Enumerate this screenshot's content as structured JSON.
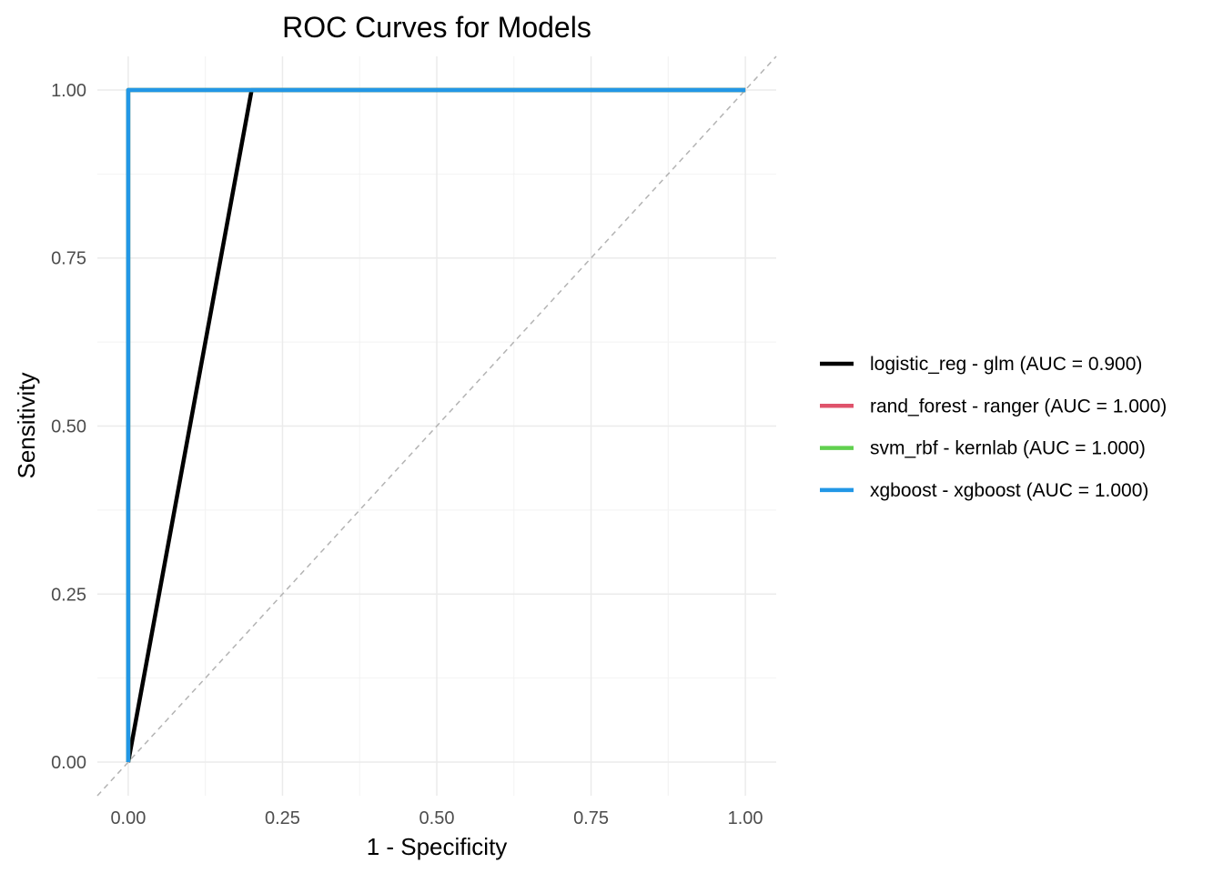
{
  "chart_data": {
    "type": "line",
    "title": "ROC Curves for Models",
    "xlabel": "1 - Specificity",
    "ylabel": "Sensitivity",
    "xlim": [
      -0.05,
      1.05
    ],
    "ylim": [
      -0.05,
      1.05
    ],
    "x_ticks": [
      "0.00",
      "0.25",
      "0.50",
      "0.75",
      "1.00"
    ],
    "y_ticks": [
      "0.00",
      "0.25",
      "0.50",
      "0.75",
      "1.00"
    ],
    "x_tick_values": [
      0,
      0.25,
      0.5,
      0.75,
      1
    ],
    "y_tick_values": [
      0,
      0.25,
      0.5,
      0.75,
      1
    ],
    "grid": true,
    "legend_position": "right",
    "reference_line": {
      "type": "diagonal",
      "style": "dashed",
      "color": "#b3b3b3"
    },
    "series": [
      {
        "name": "logistic_reg - glm (AUC = 0.900)",
        "color": "#000000",
        "x": [
          0,
          0.2,
          1
        ],
        "y": [
          0,
          1,
          1
        ]
      },
      {
        "name": "rand_forest - ranger (AUC = 1.000)",
        "color": "#DF536B",
        "x": [
          0,
          0,
          1
        ],
        "y": [
          0,
          1,
          1
        ]
      },
      {
        "name": "svm_rbf - kernlab (AUC = 1.000)",
        "color": "#61D04F",
        "x": [
          0,
          0,
          1
        ],
        "y": [
          0,
          1,
          1
        ]
      },
      {
        "name": "xgboost - xgboost (AUC = 1.000)",
        "color": "#2297E6",
        "x": [
          0,
          0,
          1
        ],
        "y": [
          0,
          1,
          1
        ]
      }
    ]
  }
}
